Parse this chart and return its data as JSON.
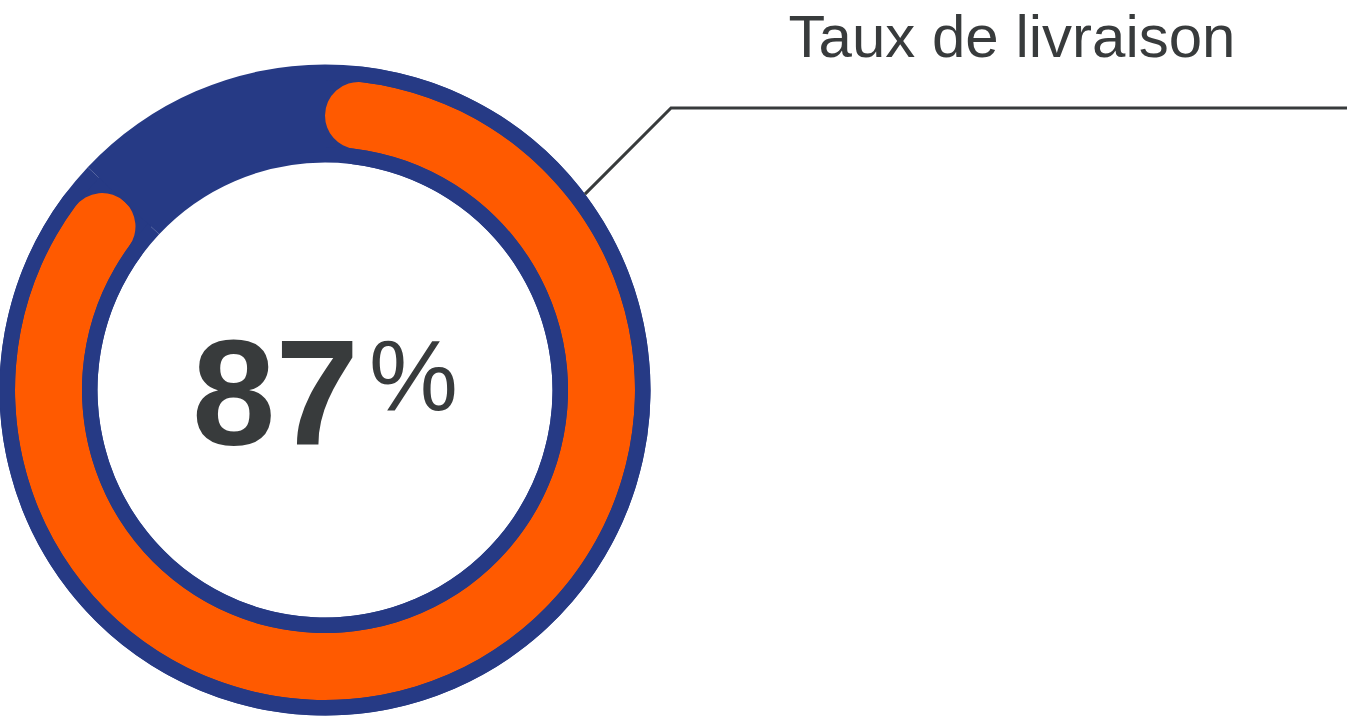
{
  "chart_data": {
    "type": "donut",
    "title": "Taux de livraison",
    "categories": [
      null,
      null
    ],
    "values": [
      87,
      13
    ],
    "colors": [
      "#ff5a00",
      "#263a85"
    ],
    "value_labels": [
      "87$^{%}$",
      null
    ]
  }
}
